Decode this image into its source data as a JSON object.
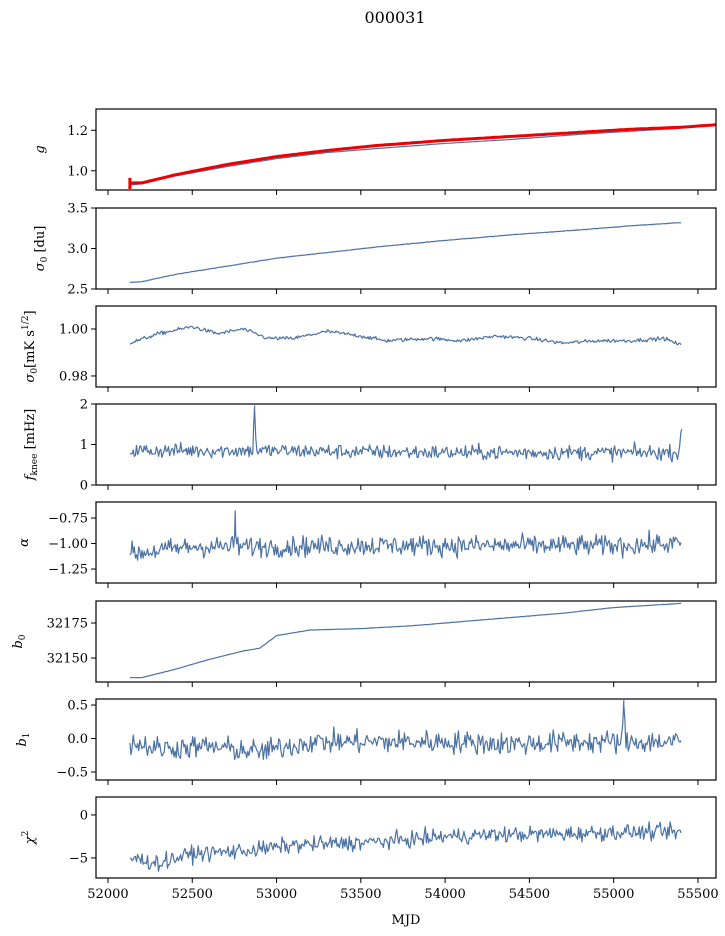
{
  "chart_data": {
    "type": "line",
    "title": "000031",
    "xlabel": "MJD",
    "xlim": [
      51929,
      55607
    ],
    "xticks": [
      52000,
      52500,
      53000,
      53500,
      54000,
      54500,
      55000,
      55500
    ],
    "xtick_labels": [
      "52000",
      "52500",
      "53000",
      "53500",
      "54000",
      "54500",
      "55000",
      "55500"
    ],
    "grid": false,
    "line_color": "#4c72a4",
    "panels": [
      {
        "name": "g",
        "ylabel": "g",
        "ylim": [
          0.905,
          1.305
        ],
        "yticks": [
          1.0,
          1.2
        ],
        "ytick_labels": [
          "1.0",
          "1.2"
        ],
        "series": [
          {
            "name": "g",
            "color": "#4c72a4",
            "width": 1.2,
            "noise": 0,
            "x": [
              52130,
              52200,
              52400,
              52700,
              53000,
              53300,
              53600,
              54000,
              54400,
              54800,
              55100,
              55400
            ],
            "y": [
              0.93,
              0.935,
              0.975,
              1.02,
              1.06,
              1.09,
              1.11,
              1.135,
              1.155,
              1.18,
              1.195,
              1.21
            ]
          },
          {
            "name": "g_fit",
            "color": "#ee0000",
            "width": 3,
            "noise": 0,
            "x": [
              52130,
              52200,
              52400,
              52700,
              53000,
              53300,
              53600,
              54000,
              54400,
              54800,
              55100,
              55400,
              55660
            ],
            "y": [
              0.94,
              0.94,
              0.98,
              1.03,
              1.07,
              1.1,
              1.125,
              1.15,
              1.17,
              1.19,
              1.205,
              1.215,
              1.23
            ]
          }
        ]
      },
      {
        "name": "sigma0-du",
        "ylabel": "σ0 [du]",
        "ylim": [
          2.5,
          3.5
        ],
        "yticks": [
          2.5,
          3.0,
          3.5
        ],
        "ytick_labels": [
          "2.5",
          "3.0",
          "3.5"
        ],
        "series": [
          {
            "name": "sigma0_du",
            "color": "#4c72a4",
            "width": 1.2,
            "noise": 0.003,
            "x": [
              52130,
              52200,
              52400,
              52700,
              53000,
              53300,
              53600,
              54000,
              54400,
              54800,
              55100,
              55400
            ],
            "y": [
              2.58,
              2.59,
              2.68,
              2.78,
              2.88,
              2.95,
              3.02,
              3.1,
              3.17,
              3.23,
              3.28,
              3.32
            ]
          }
        ]
      },
      {
        "name": "sigma0-mk",
        "ylabel": "σ0[mK s^1/2]",
        "ylim": [
          0.9753,
          1.0098
        ],
        "yticks": [
          0.98,
          1.0
        ],
        "ytick_labels": [
          "0.98",
          "1.00"
        ],
        "series": [
          {
            "name": "sigma0_mk",
            "color": "#4c72a4",
            "width": 1.2,
            "noise": 0.0008,
            "x": [
              52130,
              52300,
              52500,
              52650,
              52800,
              52950,
              53100,
              53300,
              53500,
              53650,
              53900,
              54100,
              54300,
              54500,
              54700,
              54900,
              55100,
              55300,
              55400
            ],
            "y": [
              0.994,
              0.998,
              1.001,
              0.998,
              1.0,
              0.996,
              0.996,
              0.999,
              0.997,
              0.995,
              0.996,
              0.995,
              0.997,
              0.996,
              0.994,
              0.995,
              0.995,
              0.996,
              0.993
            ]
          }
        ]
      },
      {
        "name": "fknee",
        "ylabel": "f_knee [mHz]",
        "ylim": [
          0,
          2
        ],
        "yticks": [
          0,
          1,
          2
        ],
        "ytick_labels": [
          "0",
          "1",
          "2"
        ],
        "series": [
          {
            "name": "fknee",
            "color": "#4c72a4",
            "width": 1.2,
            "noise": 0.18,
            "x": [
              52130,
              52500,
              52860,
              52870,
              52880,
              53500,
              54000,
              54500,
              55000,
              55390,
              55400,
              55405
            ],
            "y": [
              0.85,
              0.85,
              0.85,
              1.95,
              0.85,
              0.82,
              0.8,
              0.8,
              0.8,
              0.8,
              1.5,
              1.5
            ]
          }
        ]
      },
      {
        "name": "alpha",
        "ylabel": "α",
        "ylim": [
          -1.387,
          -0.593
        ],
        "yticks": [
          -1.25,
          -1.0,
          -0.75
        ],
        "ytick_labels": [
          "−1.25",
          "−1.00",
          "−0.75"
        ],
        "series": [
          {
            "name": "alpha",
            "color": "#4c72a4",
            "width": 1.2,
            "noise": 0.1,
            "x": [
              52130,
              52500,
              52750,
              52755,
              52760,
              53000,
              53500,
              54000,
              54500,
              55000,
              55400
            ],
            "y": [
              -1.1,
              -1.03,
              -1.03,
              -0.68,
              -1.03,
              -1.03,
              -1.02,
              -1.02,
              -1.02,
              -1.02,
              -1.0
            ]
          }
        ]
      },
      {
        "name": "b0",
        "ylabel": "b0",
        "ylim": [
          32132.9,
          32190.7
        ],
        "yticks": [
          32150,
          32175
        ],
        "ytick_labels": [
          "32150",
          "32175"
        ],
        "series": [
          {
            "name": "b0",
            "color": "#4c72a4",
            "width": 1.2,
            "noise": 0.1,
            "x": [
              52130,
              52200,
              52400,
              52600,
              52800,
              52900,
              53000,
              53200,
              53500,
              53800,
              54100,
              54400,
              54700,
              55000,
              55400
            ],
            "y": [
              32136,
              32136,
              32142,
              32149,
              32155,
              32157,
              32166,
              32170,
              32171,
              32173,
              32176,
              32179,
              32182,
              32186,
              32189
            ]
          }
        ]
      },
      {
        "name": "b1",
        "ylabel": "b1",
        "ylim": [
          -0.62,
          0.59
        ],
        "yticks": [
          -0.5,
          0.0,
          0.5
        ],
        "ytick_labels": [
          "−0.5",
          "0.0",
          "0.5"
        ],
        "series": [
          {
            "name": "b1",
            "color": "#4c72a4",
            "width": 1.2,
            "noise": 0.17,
            "x": [
              52130,
              52300,
              52600,
              52900,
              53200,
              53600,
              54000,
              54400,
              54800,
              55050,
              55060,
              55070,
              55400
            ],
            "y": [
              -0.05,
              -0.15,
              -0.12,
              -0.2,
              -0.05,
              -0.05,
              -0.05,
              -0.08,
              -0.05,
              -0.05,
              0.5,
              -0.05,
              -0.05
            ]
          }
        ]
      },
      {
        "name": "chi2",
        "ylabel": "χ²",
        "ylim": [
          -7.33,
          2.09
        ],
        "yticks": [
          -5,
          0
        ],
        "ytick_labels": [
          "−5",
          "0"
        ],
        "series": [
          {
            "name": "chi2",
            "color": "#4c72a4",
            "width": 1.2,
            "noise": 0.9,
            "x": [
              52130,
              52300,
              52500,
              52700,
              52900,
              53100,
              53400,
              53700,
              54000,
              54300,
              54700,
              55000,
              55400
            ],
            "y": [
              -5.0,
              -5.6,
              -4.5,
              -4.3,
              -4.0,
              -3.5,
              -3.3,
              -3.0,
              -2.5,
              -2.3,
              -2.2,
              -2.0,
              -2.0
            ]
          }
        ]
      }
    ]
  }
}
